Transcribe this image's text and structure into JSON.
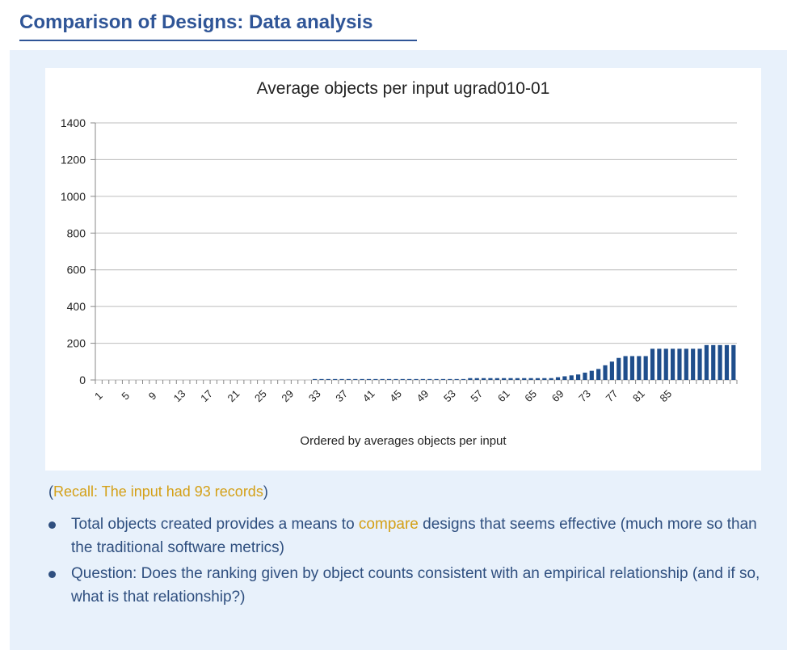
{
  "slide": {
    "title": "Comparison of Designs: Data analysis",
    "recall_open": "(",
    "recall_text": "Recall: The input had 93 records",
    "recall_close": ")",
    "bullets": [
      {
        "pre": "Total objects created provides a means to ",
        "highlight": "compare",
        "post": " designs that seems effective (much more so than the traditional software metrics)"
      },
      {
        "pre": "Question: Does the ranking given by object counts consistent with an empirical relationship (and if so, what is that relationship?)",
        "highlight": "",
        "post": ""
      }
    ]
  },
  "colors": {
    "title": "#2f5597",
    "body_text": "#2f4f7f",
    "highlight": "#d4a017",
    "bar": "#1f4e8c",
    "panel_bg": "#e8f1fb"
  },
  "chart_data": {
    "type": "bar",
    "title": "Average objects per input ugrad010-01",
    "xlabel": "Ordered by averages objects per input",
    "ylabel": "",
    "ylim": [
      0,
      1400
    ],
    "yticks": [
      0,
      200,
      400,
      600,
      800,
      1000,
      1200,
      1400
    ],
    "xtick_labels": [
      "1",
      "5",
      "9",
      "13",
      "17",
      "21",
      "25",
      "29",
      "33",
      "37",
      "41",
      "45",
      "49",
      "53",
      "57",
      "61",
      "65",
      "69",
      "73",
      "77",
      "81",
      "85"
    ],
    "grid": true,
    "series": [
      {
        "values": [
          0,
          0,
          0,
          0,
          0,
          0,
          0,
          0,
          0,
          0,
          0,
          0,
          0,
          0,
          0,
          0,
          0,
          0,
          0,
          0,
          0,
          0,
          0,
          0,
          0,
          0,
          0,
          0,
          0,
          0,
          0,
          0,
          5,
          5,
          5,
          5,
          5,
          5,
          5,
          5,
          5,
          5,
          5,
          5,
          5,
          5,
          5,
          5,
          5,
          5,
          5,
          5,
          5,
          5,
          5,
          10,
          10,
          10,
          10,
          10,
          10,
          10,
          10,
          10,
          10,
          10,
          10,
          10,
          15,
          20,
          25,
          30,
          40,
          50,
          60,
          80,
          100,
          120,
          130,
          130,
          130,
          130,
          170,
          170,
          170,
          170,
          170,
          170,
          170,
          170,
          190,
          190,
          190,
          190,
          190
        ]
      }
    ]
  }
}
